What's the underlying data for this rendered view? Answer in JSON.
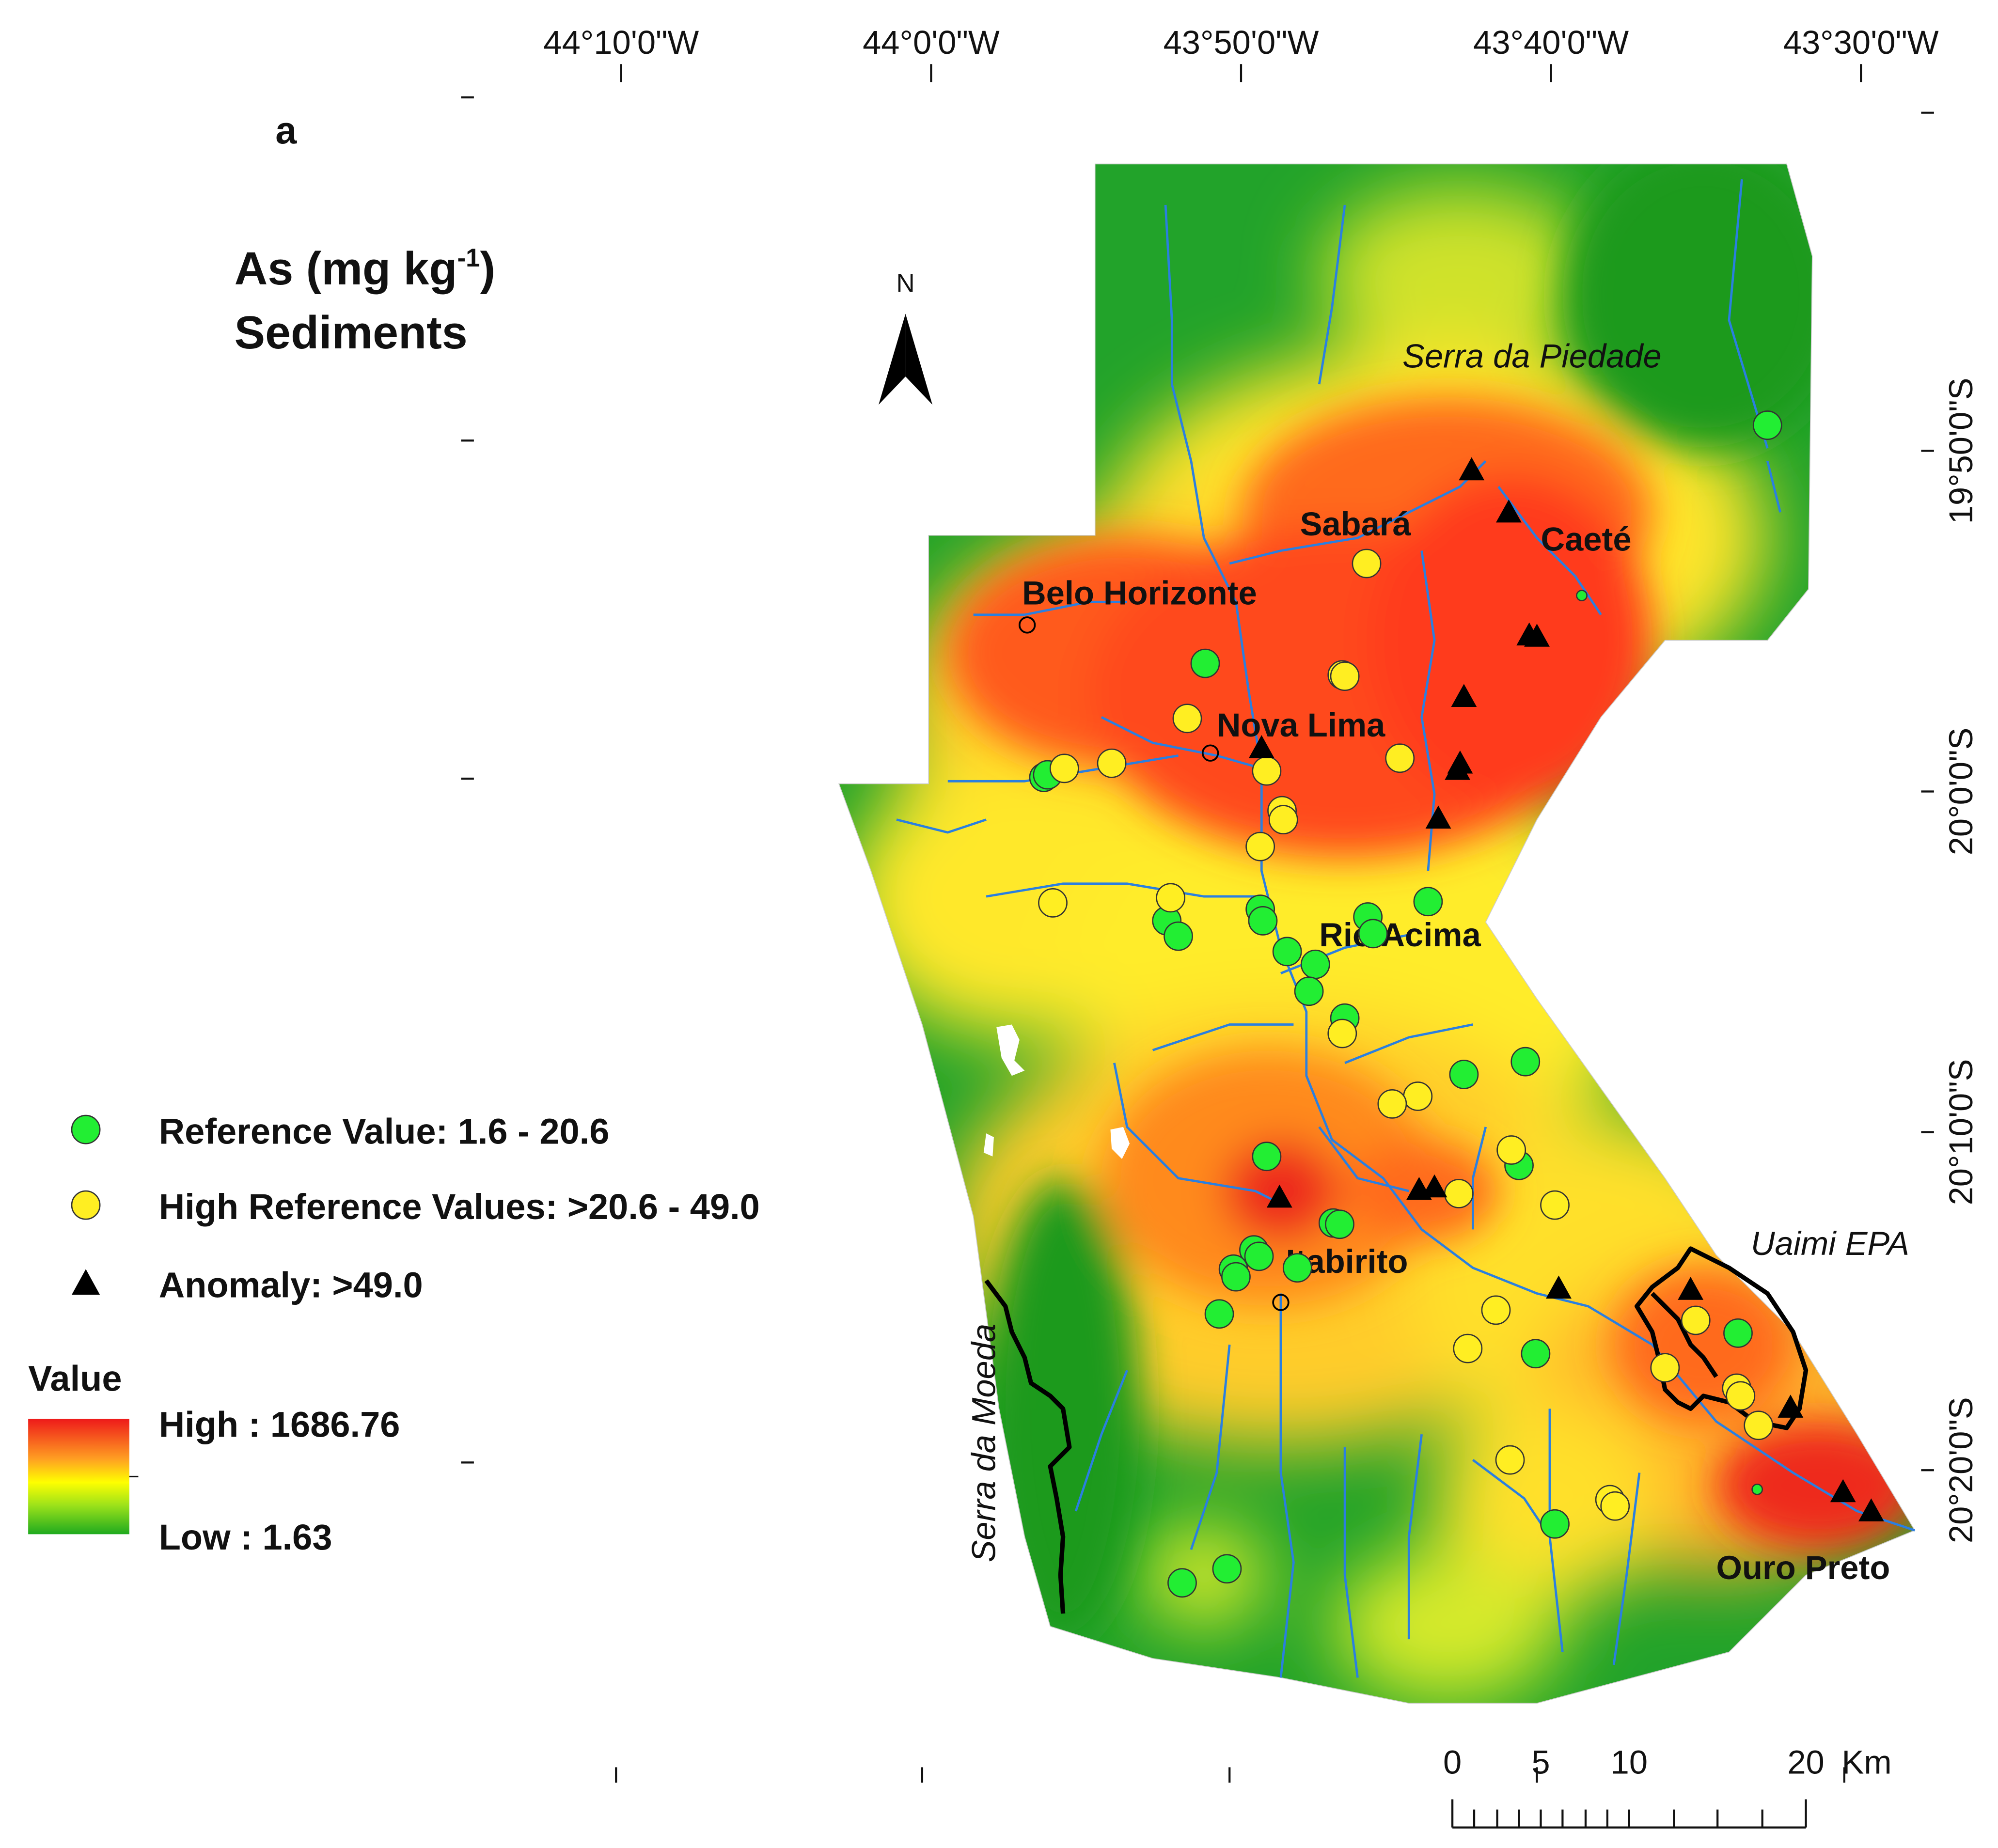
{
  "panel_label": "a",
  "title": {
    "line1_main": "As (mg kg",
    "line1_sup": "-1",
    "line1_end": ")",
    "line2": "Sediments"
  },
  "north": "N",
  "top_coords": [
    "44°10'0\"W",
    "44°0'0\"W",
    "43°50'0\"W",
    "43°40'0\"W",
    "43°30'0\"W"
  ],
  "right_coords": [
    "19°50'0\"S",
    "20°0'0\"S",
    "20°10'0\"S",
    "20°20'0\"S"
  ],
  "places": {
    "serra_piedade": "Serra da Piedade",
    "sabara": "Sabará",
    "caete": "Caeté",
    "belo_horizonte": "Belo Horizonte",
    "nova_lima": "Nova Lima",
    "rio_acima": "Rio Acima",
    "itabirito": "Itabirito",
    "uaimi": "Uaimi EPA",
    "serra_moeda": "Serra da Moeda",
    "ouro_preto": "Ouro Preto"
  },
  "legend": {
    "reference": "Reference Value: 1.6 - 20.6",
    "high_reference": "High Reference Values: >20.6 - 49.0",
    "anomaly": "Anomaly: >49.0",
    "value_title": "Value",
    "high": "High : 1686.76",
    "low": "Low : 1.63"
  },
  "colors": {
    "reference": "#22ee33",
    "high_reference": "#ffee22",
    "anomaly": "#000000",
    "high": "#ee1a1a",
    "mid": "#ffff00",
    "low": "#1faa1f"
  },
  "scale": {
    "labels": [
      "0",
      "5",
      "10",
      "20"
    ],
    "unit": "Km"
  },
  "samples": {
    "reference": 34,
    "high_reference": 29,
    "anomaly": 17
  }
}
